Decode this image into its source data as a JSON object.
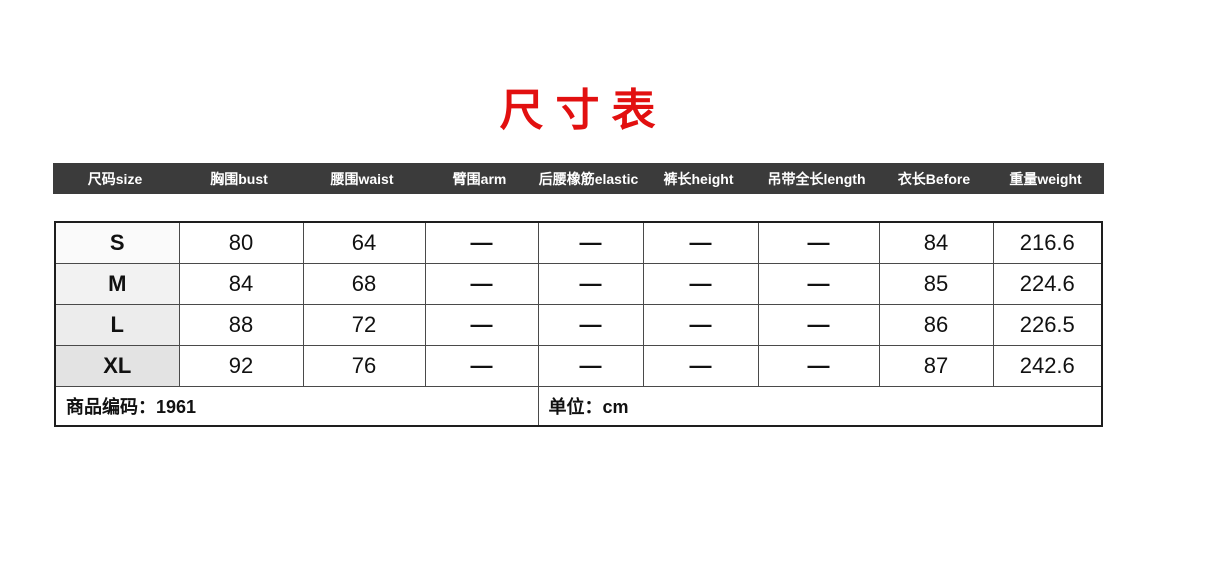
{
  "title": {
    "text": "尺寸表",
    "color": "#e21010"
  },
  "table": {
    "header": {
      "bg": "#3b3b3b",
      "text_color": "#ffffff",
      "columns": [
        "尺码size",
        "胸围bust",
        "腰围waist",
        "臂围arm",
        "后腰橡筋elastic",
        "裤长height",
        "吊带全长length",
        "衣长Before",
        "重量weight"
      ]
    },
    "rows": [
      {
        "size": "S",
        "cells": [
          "80",
          "64",
          "—",
          "—",
          "—",
          "—",
          "84",
          "216.6"
        ]
      },
      {
        "size": "M",
        "cells": [
          "84",
          "68",
          "—",
          "—",
          "—",
          "—",
          "85",
          "224.6"
        ]
      },
      {
        "size": "L",
        "cells": [
          "88",
          "72",
          "—",
          "—",
          "—",
          "—",
          "86",
          "226.5"
        ]
      },
      {
        "size": "XL",
        "cells": [
          "92",
          "76",
          "—",
          "—",
          "—",
          "—",
          "87",
          "242.6"
        ]
      }
    ],
    "footer": {
      "product_code": "商品编码：1961",
      "unit": "单位：cm"
    },
    "unit_note": "cm",
    "product_code_value": "1961"
  }
}
